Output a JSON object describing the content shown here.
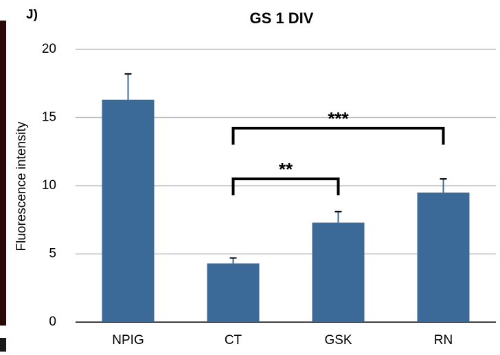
{
  "chart_data": {
    "type": "bar",
    "panel_label": "J)",
    "title": "GS 1 DIV",
    "y_label": "Fluorescence intensity",
    "categories": [
      "NPIG",
      "CT",
      "GSK",
      "RN"
    ],
    "values": [
      16.3,
      4.3,
      7.3,
      9.5
    ],
    "errors": [
      1.9,
      0.4,
      0.8,
      1.0
    ],
    "color": "#3b6a99",
    "ylim": [
      0,
      20
    ],
    "yticks": [
      0,
      5,
      10,
      15,
      20
    ],
    "grid": true,
    "annotations": [
      {
        "text": "**",
        "pair": [
          1,
          2
        ]
      },
      {
        "text": "***",
        "pair": [
          1,
          3
        ]
      }
    ]
  }
}
